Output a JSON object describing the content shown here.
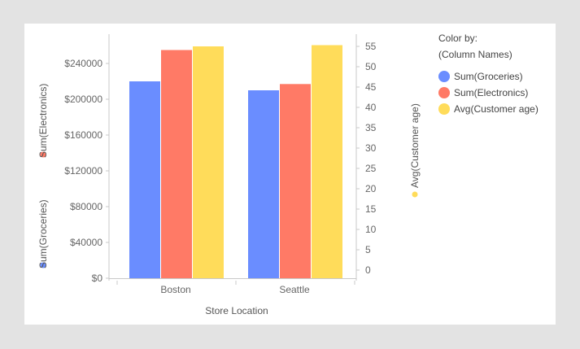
{
  "chart_data": {
    "type": "bar",
    "categories": [
      "Boston",
      "Seattle"
    ],
    "xlabel": "Store Location",
    "series": [
      {
        "name": "Sum(Groceries)",
        "axis": "left",
        "color": "#6a8dff",
        "values": [
          220000,
          210000
        ]
      },
      {
        "name": "Sum(Electronics)",
        "axis": "left",
        "color": "#ff7a66",
        "values": [
          255000,
          217000
        ]
      },
      {
        "name": "Avg(Customer age)",
        "axis": "right",
        "color": "#ffdc5a",
        "values": [
          55,
          55.3
        ]
      }
    ],
    "left_axis": {
      "labels": [
        "Sum(Groceries)",
        "Sum(Electronics)"
      ],
      "ylim": [
        0,
        280000
      ],
      "ticks": [
        0,
        40000,
        80000,
        120000,
        160000,
        200000,
        240000
      ],
      "tick_labels": [
        "$0",
        "$40000",
        "$80000",
        "$120000",
        "$160000",
        "$200000",
        "$240000"
      ]
    },
    "right_axis": {
      "label": "Avg(Customer age)",
      "ylim": [
        -2,
        58
      ],
      "ticks": [
        0,
        5,
        10,
        15,
        20,
        25,
        30,
        35,
        40,
        45,
        50,
        55
      ],
      "tick_labels": [
        "0",
        "5",
        "10",
        "15",
        "20",
        "25",
        "30",
        "35",
        "40",
        "45",
        "50",
        "55"
      ]
    },
    "legend": {
      "title": "Color by:",
      "subtitle": "(Column Names)",
      "placement": "top-right"
    },
    "grid": false
  }
}
